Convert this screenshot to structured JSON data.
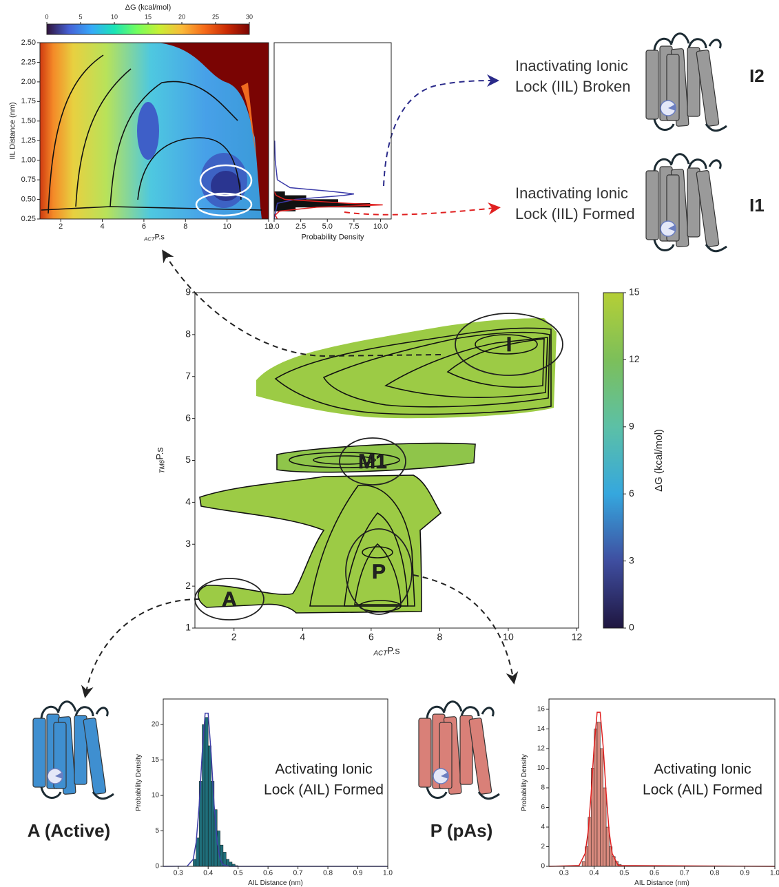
{
  "chart_data": [
    {
      "type": "heatmap",
      "xlabel_subscript": "ACT",
      "xlabel": "P.s",
      "ylabel": "IIL Distance (nm)",
      "xlim": [
        1,
        12
      ],
      "xticks": [
        2,
        4,
        6,
        8,
        10,
        12
      ],
      "ylim": [
        0.25,
        2.5
      ],
      "yticks": [
        0.25,
        {
          "value": 0.5,
          "label": "0.50"
        },
        0.75,
        {
          "value": 1,
          "label": "1.00"
        },
        1.25,
        {
          "value": 1.5,
          "label": "1.50"
        },
        1.75,
        {
          "value": 2,
          "label": "2.00"
        },
        2.25,
        {
          "value": 2.5,
          "label": "2.50"
        }
      ],
      "colorbar": {
        "label": "ΔG (kcal/mol)",
        "orientation": "horizontal",
        "lim": [
          0,
          30
        ],
        "ticks": [
          0,
          5,
          10,
          15,
          20,
          25,
          30
        ],
        "colors": [
          "#30123b",
          "#4662d7",
          "#36aaf9",
          "#1ae4b6",
          "#72fe5e",
          "#c8ef34",
          "#faba39",
          "#f66b19",
          "#ca2a04",
          "#7a0403"
        ]
      }
    },
    {
      "type": "histogram",
      "orientation": "horizontal",
      "xlabel": "Probability Density",
      "xlim": [
        0,
        11
      ],
      "xticks": [
        {
          "value": 0,
          "label": "0.0"
        },
        2.5,
        {
          "value": 5,
          "label": "5.0"
        },
        7.5,
        {
          "value": 10,
          "label": "10.0"
        }
      ],
      "ylim": [
        0.25,
        2.5
      ],
      "bins": [
        0.35,
        0.4,
        0.45,
        0.5,
        0.55,
        0.6
      ],
      "counts": [
        2,
        9,
        6,
        3,
        1
      ],
      "color": "#111111",
      "series": [
        {
          "color": "#3a3aa8",
          "y": [
            0.25,
            0.45,
            0.5,
            0.55,
            0.57,
            0.6,
            0.65,
            0.75,
            1.0,
            1.25
          ],
          "values": [
            0,
            0.3,
            2,
            6.5,
            7.5,
            5.5,
            1.5,
            0.3,
            0.1,
            0.05
          ]
        },
        {
          "color": "#e02020",
          "y": [
            0.25,
            0.3,
            0.35,
            0.4,
            0.43,
            0.45,
            0.5,
            0.55,
            0.6
          ],
          "values": [
            0.3,
            0.1,
            0.5,
            4,
            10.2,
            7,
            1,
            0.2,
            0
          ]
        }
      ]
    },
    {
      "type": "heatmap",
      "xlabel_subscript": "ACT",
      "xlabel": "P.s",
      "ylabel_subscript": "TM6",
      "ylabel": "P.s",
      "xlim": [
        0.86,
        12.05
      ],
      "xticks": [
        2,
        4,
        6,
        8,
        10,
        12
      ],
      "ylim": [
        1,
        9
      ],
      "yticks": [
        1,
        2,
        3,
        4,
        5,
        6,
        7,
        8,
        9
      ],
      "annotations": [
        "I",
        "M1",
        "P",
        "A"
      ],
      "colorbar": {
        "label": "ΔG (kcal/mol)",
        "orientation": "vertical",
        "lim": [
          0,
          15
        ],
        "ticks": [
          0,
          3,
          6,
          9,
          12,
          15
        ],
        "colors": [
          "#1f1640",
          "#3f4ea0",
          "#35a7de",
          "#5cc0a6",
          "#7cbf5a",
          "#b5cf36"
        ]
      }
    },
    {
      "type": "histogram",
      "xlabel": "AIL Distance (nm)",
      "ylabel": "Probability Density",
      "xlim": [
        0.25,
        1.0
      ],
      "xticks": [
        0.3,
        0.4,
        0.5,
        0.6,
        0.7,
        0.8,
        0.9,
        {
          "value": 1,
          "label": "1.0"
        }
      ],
      "ylim": [
        0,
        23.6
      ],
      "yticks": [
        0,
        5,
        10,
        15,
        20
      ],
      "bins": [
        0.35,
        0.36,
        0.37,
        0.38,
        0.39,
        0.4,
        0.41,
        0.42,
        0.43,
        0.44,
        0.45,
        0.46,
        0.47,
        0.48,
        0.49,
        0.5
      ],
      "counts": [
        1,
        4,
        12,
        20,
        21,
        17,
        12,
        8,
        5,
        3,
        2,
        1,
        0.6,
        0.3,
        0.1
      ],
      "color": "#1f6e7a",
      "series": [
        {
          "color": "#3f3fa8",
          "x": [
            0.25,
            0.33,
            0.35,
            0.36,
            0.37,
            0.38,
            0.39,
            0.4,
            0.41,
            0.42,
            0.43,
            0.44,
            0.45,
            0.47,
            0.5,
            1.0
          ],
          "values": [
            0,
            0.03,
            0.99,
            3.4,
            8.6,
            15.9,
            21.6,
            21.6,
            15.9,
            8.6,
            3.4,
            0.99,
            0.23,
            0,
            0,
            0
          ]
        }
      ],
      "annotation": [
        "Activating Ionic",
        "Lock (AIL) Formed"
      ]
    },
    {
      "type": "histogram",
      "xlabel": "AIL Distance (nm)",
      "ylabel": "Probability Density",
      "xlim": [
        0.25,
        1.0
      ],
      "xticks": [
        0.3,
        0.4,
        0.5,
        0.6,
        0.7,
        0.8,
        0.9,
        {
          "value": 1,
          "label": "1.0"
        }
      ],
      "ylim": [
        0,
        17.05
      ],
      "yticks": [
        0,
        2,
        4,
        6,
        8,
        10,
        12,
        14,
        16
      ],
      "bins": [
        0.36,
        0.37,
        0.38,
        0.39,
        0.4,
        0.41,
        0.42,
        0.43,
        0.44,
        0.45,
        0.46,
        0.47,
        0.48,
        0.49
      ],
      "counts": [
        0.5,
        2,
        5,
        10,
        14,
        14.7,
        12,
        8,
        4,
        2,
        1,
        0.5,
        0.2
      ],
      "color": "#d98a7e",
      "series": [
        {
          "color": "#e02020",
          "x": [
            0.25,
            0.35,
            0.37,
            0.38,
            0.39,
            0.4,
            0.41,
            0.42,
            0.43,
            0.44,
            0.45,
            0.46,
            0.48,
            1.0
          ],
          "values": [
            0,
            0.08,
            1.3,
            3.5,
            7.4,
            12.2,
            15.7,
            15.7,
            12.2,
            7.4,
            3.5,
            1.3,
            0.08,
            0
          ]
        }
      ],
      "annotation": [
        "Activating Ionic",
        "Lock (AIL) Formed"
      ]
    }
  ],
  "states": [
    {
      "label": "I2",
      "description": [
        "Inactivating Ionic",
        "Lock (IIL) Broken"
      ]
    },
    {
      "label": "I1",
      "description": [
        "Inactivating Ionic",
        "Lock (IIL) Formed"
      ]
    },
    {
      "label": "A (Active)"
    },
    {
      "label": "P (pAs)"
    }
  ]
}
